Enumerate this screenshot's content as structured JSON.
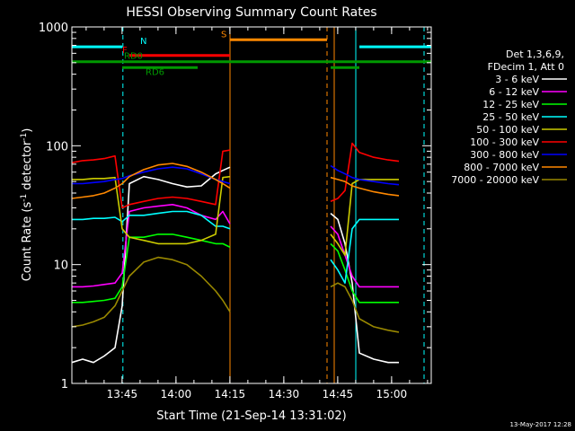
{
  "chart_data": {
    "type": "line",
    "title": "HESSI Observing Summary Count Rates",
    "xlabel": "Start Time (21-Sep-14 13:31:02)",
    "ylabel_main": "Count Rate (s",
    "ylabel_sup1": "-1",
    "ylabel_mid": " detector",
    "ylabel_sup2": "-1",
    "ylabel_end": ")",
    "footer_date": "13-May-2017 12:28",
    "x_axis": {
      "unit": "minutes since 13:31:02",
      "range": [
        0,
        100
      ],
      "ticks": [
        {
          "label": "13:45",
          "value": 13.97
        },
        {
          "label": "14:00",
          "value": 28.97
        },
        {
          "label": "14:15",
          "value": 43.97
        },
        {
          "label": "14:30",
          "value": 58.97
        },
        {
          "label": "14:45",
          "value": 73.97
        },
        {
          "label": "15:00",
          "value": 88.97
        }
      ]
    },
    "y_axis": {
      "scale": "log",
      "range": [
        1,
        1000
      ],
      "ticks": [
        {
          "label": "1",
          "value": 1
        },
        {
          "label": "10",
          "value": 10
        },
        {
          "label": "100",
          "value": 100
        },
        {
          "label": "1000",
          "value": 1000
        }
      ]
    },
    "legend": {
      "placement": "right",
      "header": [
        "Det 1,3,6,9,",
        "FDecim 1, Att 0"
      ]
    },
    "series": [
      {
        "name": "3 - 6 keV",
        "color": "#ffffff",
        "x": [
          0,
          3,
          6,
          9,
          12,
          14,
          16,
          20,
          24,
          28,
          32,
          36,
          40,
          42,
          44,
          70,
          72,
          74,
          76,
          78,
          80,
          84,
          88,
          91
        ],
        "y": [
          1.5,
          1.6,
          1.5,
          1.7,
          2.0,
          4.5,
          48,
          55,
          52,
          48,
          45,
          46,
          58,
          62,
          66,
          null,
          27,
          24,
          15,
          7,
          1.8,
          1.6,
          1.5,
          1.5
        ]
      },
      {
        "name": "6 - 12 keV",
        "color": "#ff00ff",
        "x": [
          0,
          3,
          6,
          9,
          12,
          14,
          16,
          20,
          24,
          28,
          32,
          36,
          40,
          42,
          44,
          70,
          72,
          74,
          76,
          78,
          80,
          84,
          88,
          91
        ],
        "y": [
          6.5,
          6.5,
          6.6,
          6.8,
          7.0,
          8.5,
          28,
          30,
          31,
          32,
          30,
          26,
          24,
          28,
          22,
          null,
          21,
          18,
          12,
          8,
          6.5,
          6.5,
          6.5,
          6.5
        ]
      },
      {
        "name": "12 - 25 keV",
        "color": "#00ff00",
        "x": [
          0,
          3,
          6,
          9,
          12,
          14,
          16,
          20,
          24,
          28,
          32,
          36,
          40,
          42,
          44,
          70,
          72,
          74,
          76,
          78,
          80,
          84,
          88,
          91
        ],
        "y": [
          4.8,
          4.8,
          4.9,
          5.0,
          5.2,
          6.5,
          17,
          17,
          18,
          18,
          17,
          16,
          15,
          15,
          14,
          null,
          15,
          13,
          9,
          6,
          4.8,
          4.8,
          4.8,
          4.8
        ]
      },
      {
        "name": "25 - 50 keV",
        "color": "#00ffff",
        "x": [
          0,
          3,
          6,
          9,
          12,
          14,
          16,
          20,
          24,
          28,
          32,
          36,
          40,
          42,
          44,
          70,
          72,
          74,
          76,
          78,
          80,
          84,
          88,
          91
        ],
        "y": [
          24,
          24,
          24.5,
          24.5,
          25,
          23,
          26,
          26,
          27,
          28,
          28,
          26,
          21,
          21,
          20,
          null,
          11,
          9,
          7,
          20,
          24,
          24,
          24,
          24
        ]
      },
      {
        "name": "50 - 100 keV",
        "color": "#cccc00",
        "x": [
          0,
          3,
          6,
          9,
          12,
          14,
          16,
          20,
          24,
          28,
          32,
          36,
          40,
          42,
          44,
          70,
          72,
          74,
          76,
          78,
          80,
          84,
          88,
          91
        ],
        "y": [
          52,
          52,
          53,
          53,
          54,
          20,
          17,
          16,
          15,
          15,
          15,
          16,
          18,
          54,
          55,
          null,
          18,
          15,
          12,
          48,
          52,
          52,
          52,
          52
        ]
      },
      {
        "name": "100 - 300 keV",
        "color": "#ff0000",
        "x": [
          0,
          3,
          6,
          9,
          12,
          14,
          16,
          20,
          24,
          28,
          32,
          36,
          40,
          42,
          44,
          70,
          72,
          74,
          76,
          78,
          80,
          84,
          88,
          91
        ],
        "y": [
          72,
          75,
          76,
          78,
          82,
          30,
          32,
          34,
          36,
          37,
          36,
          34,
          32,
          90,
          92,
          null,
          34,
          36,
          42,
          105,
          88,
          80,
          76,
          74
        ]
      },
      {
        "name": "300 - 800 keV",
        "color": "#0000ff",
        "x": [
          0,
          3,
          6,
          9,
          12,
          14,
          16,
          20,
          24,
          28,
          32,
          36,
          40,
          42,
          44,
          70,
          72,
          74,
          76,
          78,
          80,
          84,
          88,
          91
        ],
        "y": [
          48,
          48,
          49,
          50,
          52,
          53,
          56,
          60,
          64,
          66,
          64,
          58,
          52,
          50,
          48,
          null,
          68,
          62,
          58,
          54,
          52,
          50,
          48,
          47
        ]
      },
      {
        "name": "800 - 7000 keV",
        "color": "#ff8800",
        "x": [
          0,
          3,
          6,
          9,
          12,
          14,
          16,
          20,
          24,
          28,
          32,
          36,
          40,
          42,
          44,
          70,
          72,
          74,
          76,
          78,
          80,
          84,
          88,
          91
        ],
        "y": [
          36,
          37,
          38,
          40,
          44,
          48,
          55,
          63,
          69,
          71,
          67,
          60,
          52,
          48,
          44,
          null,
          54,
          52,
          50,
          46,
          44,
          41,
          39,
          38
        ]
      },
      {
        "name": "7000 - 20000 keV",
        "color": "#998800",
        "x": [
          0,
          3,
          6,
          9,
          12,
          14,
          16,
          20,
          24,
          28,
          32,
          36,
          40,
          42,
          44,
          70,
          72,
          74,
          76,
          78,
          80,
          84,
          88,
          91
        ],
        "y": [
          3.0,
          3.1,
          3.3,
          3.6,
          4.5,
          6.0,
          8.0,
          10.5,
          11.5,
          11.0,
          10.0,
          8.0,
          6.0,
          5.0,
          4.0,
          null,
          6.5,
          7.0,
          6.5,
          5.0,
          3.5,
          3.0,
          2.8,
          2.7
        ]
      }
    ],
    "flag_bars": [
      {
        "label": "N",
        "color": "#00ffff",
        "y": 680,
        "segments": [
          [
            0,
            14
          ],
          [
            80,
            100
          ]
        ]
      },
      {
        "label": "S",
        "color": "#ff8800",
        "y": 780,
        "segments": [
          [
            44,
            71
          ]
        ]
      },
      {
        "label": "F",
        "color": "#ff0000",
        "y": 575,
        "segments": [
          [
            16,
            44
          ]
        ]
      },
      {
        "label": "RD0",
        "color": "#009900",
        "y": 510,
        "segments": [
          [
            0,
            35
          ],
          [
            35,
            72
          ],
          [
            72,
            80
          ],
          [
            80,
            100
          ]
        ]
      },
      {
        "label": "RD6",
        "color": "#009900",
        "y": 455,
        "segments": [
          [
            14,
            35
          ],
          [
            72,
            80
          ]
        ]
      }
    ],
    "vlines": [
      {
        "x": 0,
        "color": "#00ffff",
        "dash": false
      },
      {
        "x": 14.2,
        "color": "#00ffff",
        "dash": true
      },
      {
        "x": 44,
        "color": "#ff8800",
        "dash": false
      },
      {
        "x": 71,
        "color": "#ff8800",
        "dash": true
      },
      {
        "x": 73,
        "color": "#ff8800",
        "dash": false
      },
      {
        "x": 79,
        "color": "#00ffff",
        "dash": false
      },
      {
        "x": 98,
        "color": "#00ffff",
        "dash": true
      }
    ]
  }
}
